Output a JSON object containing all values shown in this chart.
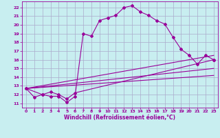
{
  "xlabel": "Windchill (Refroidissement éolien,°C)",
  "bg_color": "#c8eef0",
  "grid_color": "#aaaacc",
  "line_color": "#990099",
  "xlim": [
    -0.5,
    23.5
  ],
  "ylim": [
    10.5,
    22.7
  ],
  "xticks": [
    0,
    1,
    2,
    3,
    4,
    5,
    6,
    7,
    8,
    9,
    10,
    11,
    12,
    13,
    14,
    15,
    16,
    17,
    18,
    19,
    20,
    21,
    22,
    23
  ],
  "yticks": [
    11,
    12,
    13,
    14,
    15,
    16,
    17,
    18,
    19,
    20,
    21,
    22
  ],
  "line1_x": [
    0,
    1,
    2,
    3,
    4,
    5,
    6,
    7,
    8,
    9,
    10,
    11,
    12,
    13,
    14,
    15,
    16,
    17,
    18,
    19,
    20,
    21,
    22,
    23
  ],
  "line1_y": [
    12.7,
    11.7,
    12.0,
    11.8,
    11.8,
    11.1,
    11.8,
    19.0,
    18.7,
    20.5,
    20.8,
    21.1,
    22.0,
    22.2,
    21.5,
    21.1,
    20.5,
    20.1,
    18.6,
    17.2,
    16.5,
    15.5,
    16.5,
    16.0
  ],
  "line2_x": [
    0,
    2,
    3,
    4,
    5,
    6,
    23
  ],
  "line2_y": [
    12.7,
    12.0,
    12.3,
    12.0,
    11.5,
    12.2,
    16.0
  ],
  "line3_x": [
    0,
    23
  ],
  "line3_y": [
    12.7,
    16.5
  ],
  "line4_x": [
    0,
    23
  ],
  "line4_y": [
    12.7,
    15.0
  ],
  "line5_x": [
    0,
    23
  ],
  "line5_y": [
    12.7,
    14.2
  ]
}
